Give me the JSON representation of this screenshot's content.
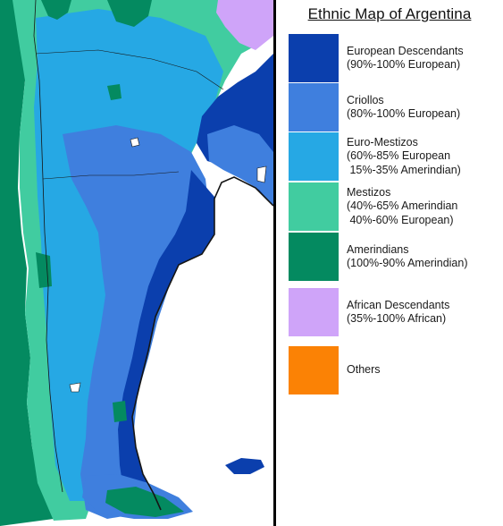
{
  "legend": {
    "title": "Ethnic Map of Argentina",
    "items": [
      {
        "lines": [
          "European Descendants",
          "(90%-100% European)"
        ],
        "color": "#0b3fad"
      },
      {
        "lines": [
          "Criollos",
          "(80%-100% European)"
        ],
        "color": "#3f7fde"
      },
      {
        "lines": [
          "Euro-Mestizos",
          "(60%-85% European",
          " 15%-35% Amerindian)"
        ],
        "color": "#26a8e4"
      },
      {
        "lines": [
          "Mestizos",
          "(40%-65% Amerindian",
          " 40%-60% European)"
        ],
        "color": "#41cca0"
      },
      {
        "lines": [
          "Amerindians",
          "(100%-90% Amerindian)"
        ],
        "color": "#048a60"
      },
      {
        "lines": [
          "African Descendants",
          "(35%-100% African)"
        ],
        "color": "#cfa4f9"
      },
      {
        "lines": [
          "Others"
        ],
        "color": "#fb8205"
      }
    ]
  },
  "map_colors": {
    "water": "#ffffff",
    "border": "#151515",
    "lake": "#ffffff"
  }
}
